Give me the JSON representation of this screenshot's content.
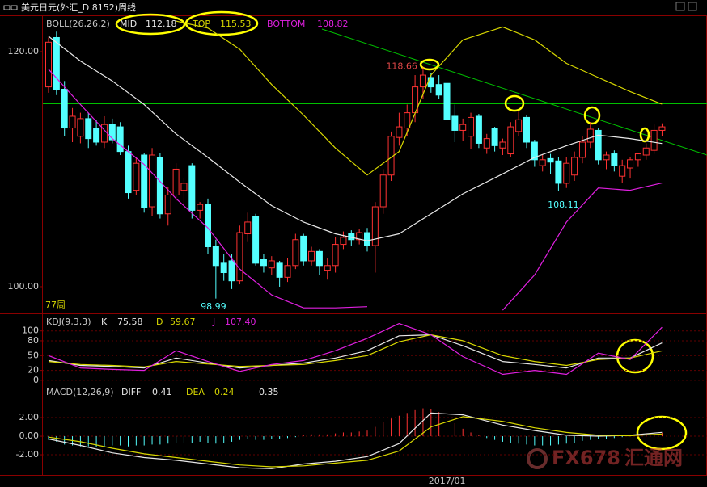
{
  "title": "美元日元(外汇_D 8152)周线",
  "watermark": {
    "brand": "FX678",
    "name": "汇通网"
  },
  "chart_data": [
    {
      "type": "candlestick",
      "legend_title": "BOLL(26,26,2)",
      "annotation": "77周",
      "categories": [
        null,
        null,
        null,
        null,
        null,
        null,
        null,
        null,
        null,
        null,
        null,
        null,
        null,
        null,
        null,
        null,
        null,
        null,
        null,
        null,
        null,
        null,
        null,
        null,
        null,
        null,
        null,
        null,
        null,
        null,
        null,
        null,
        null,
        null,
        null,
        null,
        null,
        null,
        null,
        null,
        null,
        null,
        null,
        null,
        null,
        null,
        null,
        null,
        null,
        "2017/01",
        null,
        null,
        null,
        null,
        null,
        null,
        null,
        null,
        null,
        null,
        null,
        null,
        null,
        null,
        null,
        null,
        null,
        null,
        null,
        null,
        null,
        null,
        null,
        null,
        null,
        null,
        null,
        null
      ],
      "open": [
        117.0,
        121.2,
        116.8,
        113.5,
        112.8,
        114.3,
        113.5,
        112.3,
        113.8,
        113.6,
        111.5,
        108.2,
        111.2,
        106.8,
        111.0,
        106.2,
        107.8,
        108.2,
        110.3,
        106.5,
        107.0,
        103.4,
        102.0,
        102.2,
        100.5,
        104.5,
        106.0,
        102.3,
        101.6,
        102.0,
        100.8,
        101.8,
        104.3,
        102.2,
        103.0,
        101.4,
        101.8,
        103.6,
        104.5,
        104.0,
        104.6,
        103.5,
        106.8,
        109.5,
        112.7,
        113.5,
        114.8,
        117.0,
        117.8,
        117.2,
        117.3,
        114.5,
        113.3,
        112.8,
        114.5,
        111.8,
        113.5,
        111.8,
        111.3,
        113.2,
        114.4,
        112.3,
        110.3,
        110.9,
        110.7,
        108.8,
        109.5,
        111.0,
        112.3,
        113.3,
        110.8,
        111.3,
        109.4,
        110.1,
        110.8,
        111.2,
        111.6,
        113.3
      ],
      "high": [
        121.2,
        121.7,
        117.5,
        115.2,
        114.8,
        114.8,
        114.2,
        114.5,
        114.3,
        114.0,
        112.0,
        111.0,
        111.4,
        111.8,
        111.4,
        108.5,
        110.5,
        109.2,
        110.5,
        107.2,
        107.5,
        104.0,
        102.8,
        102.8,
        105.2,
        106.3,
        106.2,
        102.8,
        102.6,
        102.2,
        102.4,
        104.5,
        104.5,
        103.4,
        103.2,
        102.4,
        104.2,
        104.7,
        104.8,
        104.9,
        105.0,
        107.2,
        110.0,
        113.2,
        114.8,
        115.5,
        118.0,
        118.66,
        118.2,
        118.0,
        117.6,
        115.5,
        114.3,
        114.8,
        114.7,
        113.0,
        113.6,
        112.6,
        114.0,
        114.9,
        114.6,
        112.5,
        111.2,
        111.3,
        111.0,
        111.0,
        111.5,
        112.8,
        114.0,
        113.5,
        111.5,
        111.6,
        110.8,
        111.0,
        111.4,
        112.2,
        113.8,
        113.9
      ],
      "low": [
        116.5,
        116.3,
        112.8,
        112.3,
        112.2,
        111.8,
        112.0,
        111.8,
        112.2,
        111.2,
        107.5,
        107.8,
        106.3,
        106.0,
        105.8,
        105.2,
        107.3,
        107.0,
        105.8,
        105.8,
        102.8,
        98.99,
        100.5,
        99.8,
        100.2,
        103.8,
        101.8,
        101.2,
        101.0,
        100.0,
        100.4,
        101.5,
        101.8,
        101.8,
        101.0,
        100.6,
        101.2,
        103.2,
        103.5,
        103.6,
        103.0,
        101.2,
        106.2,
        109.0,
        112.0,
        112.8,
        114.0,
        116.0,
        116.5,
        116.0,
        113.5,
        112.3,
        112.4,
        111.7,
        111.8,
        111.3,
        111.5,
        111.2,
        111.0,
        112.8,
        111.8,
        110.2,
        109.8,
        109.6,
        108.11,
        108.4,
        109.0,
        110.5,
        111.8,
        110.4,
        110.0,
        109.8,
        108.8,
        109.2,
        110.2,
        110.8,
        111.3,
        112.8
      ],
      "close": [
        120.8,
        116.8,
        113.5,
        114.5,
        114.3,
        112.6,
        112.3,
        113.8,
        112.5,
        111.5,
        108.0,
        110.5,
        106.7,
        111.2,
        106.2,
        107.8,
        110.0,
        108.8,
        106.5,
        107.0,
        103.4,
        101.8,
        101.2,
        100.5,
        104.6,
        105.5,
        102.0,
        101.8,
        102.2,
        100.8,
        101.8,
        104.0,
        102.2,
        103.0,
        101.8,
        101.8,
        103.6,
        104.2,
        104.0,
        104.6,
        103.5,
        106.8,
        109.5,
        112.8,
        113.6,
        114.8,
        117.0,
        118.0,
        117.0,
        116.3,
        114.2,
        113.3,
        113.8,
        114.4,
        112.2,
        112.6,
        112.0,
        112.3,
        113.6,
        114.2,
        112.3,
        110.8,
        110.8,
        110.6,
        108.8,
        110.5,
        111.0,
        112.3,
        113.4,
        110.8,
        111.2,
        110.3,
        110.3,
        110.8,
        111.3,
        111.8,
        113.3,
        113.6
      ],
      "up_color": "#ff3232",
      "down_color": "#54ffff",
      "ylim": [
        97.73,
        123.02
      ],
      "yticks": [
        {
          "value": 100,
          "label": "100.00"
        },
        {
          "value": 120,
          "label": "120.00"
        }
      ],
      "x": [
        0,
        4,
        8,
        12,
        16,
        20,
        24,
        28,
        32,
        36,
        40,
        44,
        48,
        52,
        57,
        61,
        65,
        69,
        73,
        77
      ],
      "series": [
        {
          "name": "MID",
          "color": "#e8e8e8",
          "values": [
            121.3,
            119.2,
            117.5,
            115.5,
            113.0,
            111.0,
            108.9,
            106.9,
            105.5,
            104.5,
            103.9,
            104.5,
            106.2,
            107.9,
            109.6,
            111.0,
            112.0,
            112.9,
            112.6,
            112.18
          ]
        },
        {
          "name": "TOP",
          "color": "#d8d800",
          "values": [
            null,
            null,
            null,
            null,
            122.6,
            122.0,
            120.2,
            117.2,
            114.6,
            111.8,
            109.5,
            111.5,
            118.0,
            121.0,
            122.1,
            121.0,
            119.0,
            117.8,
            116.6,
            115.53
          ]
        },
        {
          "name": "BOTTOM",
          "color": "#e020e0",
          "values": [
            118.5,
            115.5,
            112.6,
            110.4,
            107.5,
            105.0,
            101.5,
            99.3,
            98.2,
            98.2,
            98.3,
            null,
            null,
            null,
            98.0,
            101.0,
            105.5,
            108.4,
            108.2,
            108.82
          ]
        }
      ]
    },
    {
      "type": "line",
      "legend_title": "KDJ(9,3,3)",
      "grid": true,
      "ylim": [
        -6.8,
        133.9
      ],
      "yticks": [
        0,
        20,
        50,
        80,
        100
      ],
      "x": [
        0,
        4,
        8,
        12,
        16,
        20,
        24,
        28,
        32,
        36,
        40,
        44,
        48,
        52,
        57,
        61,
        65,
        69,
        73,
        77
      ],
      "series": [
        {
          "name": "K",
          "color": "#e8e8e8",
          "values": [
            40,
            30,
            28,
            25,
            45,
            35,
            25,
            30,
            35,
            45,
            60,
            90,
            92,
            70,
            38,
            32,
            25,
            45,
            45,
            75.58
          ]
        },
        {
          "name": "D",
          "color": "#d8d800",
          "values": [
            38,
            32,
            30,
            27,
            38,
            33,
            28,
            30,
            32,
            40,
            50,
            78,
            92,
            80,
            50,
            38,
            30,
            42,
            45,
            59.67
          ]
        },
        {
          "name": "J",
          "color": "#e020e0",
          "values": [
            50,
            25,
            22,
            20,
            60,
            38,
            18,
            32,
            40,
            60,
            85,
            115,
            92,
            48,
            12,
            20,
            12,
            55,
            42,
            107.4
          ],
          "value_labels": [
            null,
            null,
            null,
            null,
            null,
            null,
            null,
            null,
            null,
            null,
            null,
            null,
            null,
            null,
            null,
            null,
            null,
            null,
            null,
            "107.40"
          ]
        }
      ]
    },
    {
      "type": "macd",
      "legend_title": "MACD(12,26,9)",
      "grid": true,
      "ylim": [
        -4.17,
        5.57
      ],
      "yticks": [
        {
          "value": -2,
          "label": "-2.00"
        },
        {
          "value": 0,
          "label": "0.00"
        },
        {
          "value": 2,
          "label": "2.00"
        }
      ],
      "x": [
        0,
        4,
        8,
        12,
        16,
        20,
        24,
        28,
        32,
        36,
        40,
        44,
        48,
        52,
        57,
        61,
        65,
        69,
        73,
        77
      ],
      "series": [
        {
          "name": "DIFF",
          "color": "#e8e8e8",
          "values": [
            -0.3,
            -1.0,
            -1.8,
            -2.3,
            -2.6,
            -3.0,
            -3.4,
            -3.5,
            -3.0,
            -2.7,
            -2.2,
            -0.8,
            2.5,
            2.3,
            1.2,
            0.6,
            0.1,
            0.0,
            0.1,
            0.41
          ]
        },
        {
          "name": "DEA",
          "color": "#d8d800",
          "values": [
            -0.1,
            -0.6,
            -1.3,
            -1.9,
            -2.3,
            -2.7,
            -3.1,
            -3.3,
            -3.2,
            -2.9,
            -2.6,
            -1.6,
            1.0,
            2.1,
            1.6,
            0.9,
            0.4,
            0.1,
            0.05,
            0.24
          ]
        }
      ],
      "histogram": {
        "up_color": "#ff3232",
        "down_color": "#54ffff",
        "values": [
          -0.4,
          -0.6,
          -0.9,
          -1.0,
          -1.1,
          -1.1,
          -1.2,
          -1.1,
          -1.0,
          -1.0,
          -1.1,
          -1.0,
          -1.0,
          -0.9,
          -0.9,
          -0.8,
          -0.7,
          -0.7,
          -0.7,
          -0.6,
          -0.7,
          -0.8,
          -0.7,
          -0.6,
          -0.4,
          -0.3,
          -0.4,
          -0.4,
          -0.3,
          -0.3,
          -0.2,
          -0.1,
          0.1,
          0.2,
          0.2,
          0.2,
          0.3,
          0.4,
          0.4,
          0.5,
          0.6,
          1.0,
          1.5,
          1.9,
          2.2,
          2.5,
          2.8,
          3.0,
          2.9,
          2.6,
          2.0,
          1.4,
          0.8,
          0.4,
          0.1,
          -0.2,
          -0.4,
          -0.6,
          -0.7,
          -0.8,
          -0.9,
          -1.0,
          -1.0,
          -1.0,
          -0.9,
          -0.8,
          -0.7,
          -0.5,
          -0.4,
          -0.3,
          -0.3,
          -0.2,
          -0.1,
          0.0,
          0.1,
          0.2,
          0.3,
          0.35
        ]
      }
    }
  ]
}
